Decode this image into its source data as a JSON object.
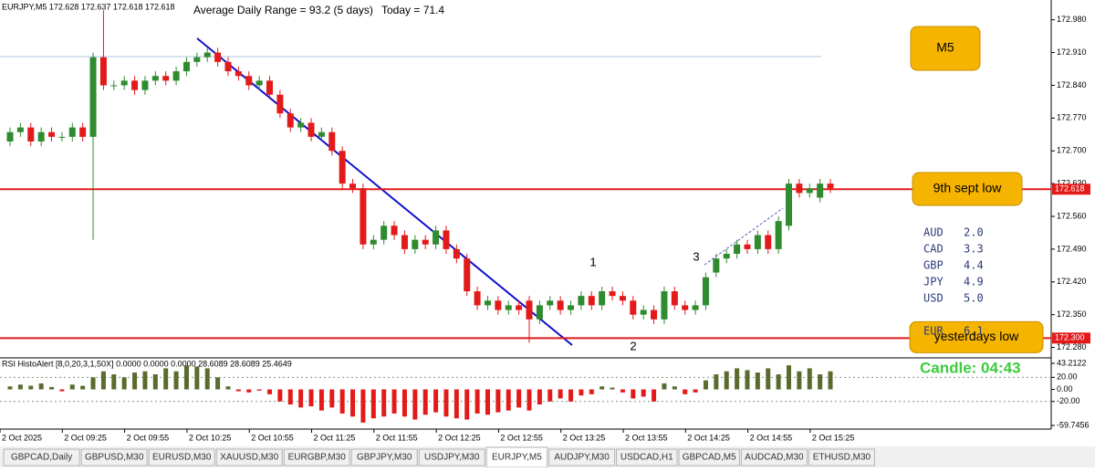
{
  "chart_data": {
    "type": "candlestick",
    "header": "EURJPY,M5  172.628 172.637 172.618 172.618",
    "subheader": "Average Daily Range = 93.2 (5 days)",
    "today": "Today = 71.4",
    "open": [
      172.72,
      172.74,
      172.75,
      172.72,
      172.74,
      172.73,
      172.73,
      172.75,
      172.73,
      172.9,
      172.84,
      172.84,
      172.85,
      172.83,
      172.85,
      172.86,
      172.85,
      172.87,
      172.89,
      172.9,
      172.91,
      172.89,
      172.87,
      172.86,
      172.84,
      172.85,
      172.82,
      172.78,
      172.75,
      172.76,
      172.73,
      172.74,
      172.7,
      172.63,
      172.62,
      172.5,
      172.51,
      172.54,
      172.52,
      172.49,
      172.51,
      172.5,
      172.53,
      172.49,
      172.47,
      172.4,
      172.37,
      172.38,
      172.36,
      172.37,
      172.38,
      172.34,
      172.37,
      172.38,
      172.36,
      172.37,
      172.39,
      172.37,
      172.4,
      172.39,
      172.38,
      172.35,
      172.36,
      172.34,
      172.4,
      172.37,
      172.36,
      172.37,
      172.44,
      172.47,
      172.48,
      172.5,
      172.49,
      172.52,
      172.49,
      172.54,
      172.63,
      172.61,
      172.6,
      172.63
    ],
    "close": [
      172.74,
      172.75,
      172.72,
      172.74,
      172.73,
      172.73,
      172.75,
      172.73,
      172.9,
      172.84,
      172.84,
      172.85,
      172.83,
      172.85,
      172.86,
      172.85,
      172.87,
      172.89,
      172.9,
      172.91,
      172.89,
      172.87,
      172.86,
      172.84,
      172.85,
      172.82,
      172.78,
      172.75,
      172.76,
      172.73,
      172.74,
      172.7,
      172.63,
      172.62,
      172.5,
      172.51,
      172.54,
      172.52,
      172.49,
      172.51,
      172.5,
      172.53,
      172.49,
      172.47,
      172.4,
      172.37,
      172.38,
      172.36,
      172.37,
      172.36,
      172.34,
      172.37,
      172.38,
      172.36,
      172.37,
      172.39,
      172.37,
      172.4,
      172.39,
      172.38,
      172.35,
      172.36,
      172.34,
      172.4,
      172.37,
      172.36,
      172.37,
      172.43,
      172.47,
      172.48,
      172.5,
      172.49,
      172.52,
      172.49,
      172.55,
      172.63,
      172.61,
      172.62,
      172.63,
      172.62
    ],
    "high": [
      172.75,
      172.76,
      172.76,
      172.75,
      172.75,
      172.74,
      172.76,
      172.76,
      172.91,
      173.0,
      172.85,
      172.86,
      172.86,
      172.86,
      172.87,
      172.87,
      172.88,
      172.9,
      172.91,
      172.92,
      172.92,
      172.9,
      172.88,
      172.87,
      172.86,
      172.86,
      172.83,
      172.79,
      172.77,
      172.77,
      172.75,
      172.75,
      172.71,
      172.64,
      172.63,
      172.52,
      172.55,
      172.55,
      172.53,
      172.52,
      172.52,
      172.54,
      172.54,
      172.5,
      172.48,
      172.41,
      172.39,
      172.39,
      172.38,
      172.38,
      172.39,
      172.38,
      172.39,
      172.39,
      172.38,
      172.4,
      172.4,
      172.41,
      172.41,
      172.4,
      172.39,
      172.37,
      172.37,
      172.41,
      172.41,
      172.38,
      172.38,
      172.44,
      172.48,
      172.49,
      172.51,
      172.51,
      172.53,
      172.53,
      172.56,
      172.64,
      172.64,
      172.63,
      172.64,
      172.64
    ],
    "low": [
      172.71,
      172.73,
      172.71,
      172.71,
      172.72,
      172.72,
      172.72,
      172.72,
      172.51,
      172.83,
      172.83,
      172.83,
      172.82,
      172.82,
      172.84,
      172.84,
      172.84,
      172.86,
      172.88,
      172.89,
      172.88,
      172.86,
      172.85,
      172.83,
      172.83,
      172.81,
      172.77,
      172.74,
      172.74,
      172.72,
      172.72,
      172.69,
      172.62,
      172.61,
      172.49,
      172.49,
      172.5,
      172.51,
      172.48,
      172.48,
      172.49,
      172.49,
      172.48,
      172.46,
      172.39,
      172.36,
      172.36,
      172.35,
      172.35,
      172.35,
      172.29,
      172.33,
      172.36,
      172.35,
      172.35,
      172.36,
      172.36,
      172.36,
      172.38,
      172.37,
      172.34,
      172.34,
      172.33,
      172.33,
      172.36,
      172.35,
      172.35,
      172.36,
      172.43,
      172.46,
      172.47,
      172.48,
      172.48,
      172.48,
      172.48,
      172.53,
      172.6,
      172.6,
      172.59,
      172.61
    ],
    "up_color": "#2e8b2e",
    "down_color": "#e31a1a",
    "ylim": [
      172.2616,
      173.0223
    ],
    "yticks": [
      {
        "value": 172.98,
        "label": "172.980"
      },
      {
        "value": 172.91,
        "label": "172.910"
      },
      {
        "value": 172.84,
        "label": "172.840"
      },
      {
        "value": 172.77,
        "label": "172.770"
      },
      {
        "value": 172.7,
        "label": "172.700"
      },
      {
        "value": 172.63,
        "label": "172.630"
      },
      {
        "value": 172.56,
        "label": "172.560"
      },
      {
        "value": 172.49,
        "label": "172.490"
      },
      {
        "value": 172.42,
        "label": "172.420"
      },
      {
        "value": 172.35,
        "label": "172.350"
      },
      {
        "value": 172.28,
        "label": "172.280"
      }
    ],
    "levels": [
      {
        "value": 172.618,
        "label": "172.618",
        "name": "9th sept low"
      },
      {
        "value": 172.3,
        "label": "172.300",
        "name": "yesterdays low"
      }
    ],
    "level_color": "#e31a1a",
    "x_labels": [
      "2 Oct 2025",
      "2 Oct 09:25",
      "2 Oct 09:55",
      "2 Oct 10:25",
      "2 Oct 10:55",
      "2 Oct 11:25",
      "2 Oct 11:55",
      "2 Oct 12:25",
      "2 Oct 12:55",
      "2 Oct 13:25",
      "2 Oct 13:55",
      "2 Oct 14:25",
      "2 Oct 14:55",
      "2 Oct 15:25"
    ],
    "indicator": {
      "title": "RSI HistoAlert [8,0,20,3,1,50X] 0.0000 0.0000 0.0000 28.6089 28.6089 25.4649",
      "values": [
        5,
        8,
        6,
        10,
        4,
        -3,
        8,
        6,
        20,
        30,
        25,
        20,
        28,
        30,
        25,
        35,
        30,
        40,
        38,
        35,
        20,
        5,
        -3,
        -5,
        -2,
        -8,
        -20,
        -25,
        -30,
        -28,
        -35,
        -30,
        -40,
        -45,
        -55,
        -48,
        -45,
        -40,
        -45,
        -50,
        -42,
        -38,
        -45,
        -48,
        -50,
        -40,
        -42,
        -38,
        -35,
        -30,
        -35,
        -25,
        -20,
        -15,
        -20,
        -10,
        -8,
        5,
        3,
        -5,
        -15,
        -12,
        -20,
        10,
        5,
        -8,
        -5,
        15,
        25,
        30,
        35,
        32,
        28,
        35,
        25,
        40,
        30,
        35,
        25,
        30
      ],
      "pos_color": "#5a6b2e",
      "neg_color": "#e31a1a",
      "ylim": [
        -59.7456,
        43.2122
      ],
      "yticks": [
        43.2122,
        {
          "value": 20,
          "label": "20.00"
        },
        {
          "value": 0,
          "label": "0.00"
        },
        {
          "value": -20,
          "label": "-20.00"
        },
        -59.7456
      ]
    },
    "wave_labels": [
      "1",
      "2",
      "3"
    ],
    "timeframe": "M5",
    "strength": [
      {
        "currency": "AUD",
        "value": 2.0,
        "label": "2.0"
      },
      {
        "currency": "CAD",
        "value": 3.3,
        "label": "3.3"
      },
      {
        "currency": "GBP",
        "value": 4.4,
        "label": "4.4"
      },
      {
        "currency": "JPY",
        "value": 4.9,
        "label": "4.9"
      },
      {
        "currency": "USD",
        "value": 5.0,
        "label": "5.0"
      },
      {
        "currency": "EUR",
        "value": 6.1,
        "label": "6.1"
      }
    ],
    "candle_timer": "Candle:  04:43",
    "tabs": [
      "GBPCAD,Daily",
      "GBPUSD,M30",
      "EURUSD,M30",
      "XAUUSD,M30",
      "EURGBP,M30",
      "GBPJPY,M30",
      "USDJPY,M30",
      "EURJPY,M5",
      "AUDJPY,M30",
      "USDCAD,H1",
      "GBPCAD,M5",
      "AUDCAD,M30",
      "ETHUSD,M30"
    ],
    "active_tab": 7
  }
}
